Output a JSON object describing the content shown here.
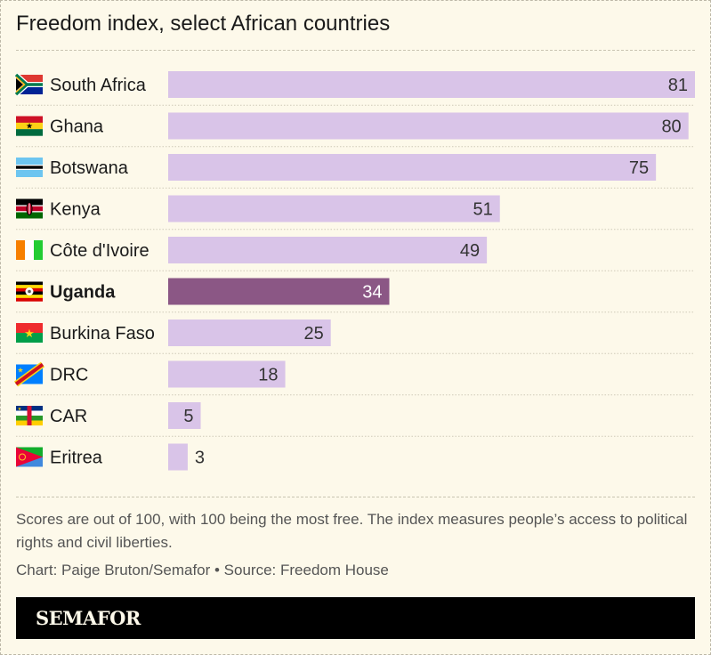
{
  "chart_data": {
    "type": "bar",
    "orientation": "horizontal",
    "title": "Freedom index, select African countries",
    "categories": [
      "South Africa",
      "Ghana",
      "Botswana",
      "Kenya",
      "Côte d'Ivoire",
      "Uganda",
      "Burkina Faso",
      "DRC",
      "CAR",
      "Eritrea"
    ],
    "values": [
      81,
      80,
      75,
      51,
      49,
      34,
      25,
      18,
      5,
      3
    ],
    "highlight": "Uganda",
    "xlim": [
      0,
      81
    ],
    "grid": false,
    "colors": {
      "bar": "#d9c4e8",
      "highlight": "#8b5785",
      "background": "#fdf9ea"
    }
  },
  "flags": [
    "south-africa-flag-icon",
    "ghana-flag-icon",
    "botswana-flag-icon",
    "kenya-flag-icon",
    "cote-divoire-flag-icon",
    "uganda-flag-icon",
    "burkina-faso-flag-icon",
    "drc-flag-icon",
    "car-flag-icon",
    "eritrea-flag-icon"
  ],
  "note": "Scores are out of 100, with 100 being the most free. The index measures people’s access to political rights and civil liberties.",
  "credit": "Chart: Paige Bruton/Semafor  • Source: Freedom House",
  "logo": "SEMAFOR"
}
